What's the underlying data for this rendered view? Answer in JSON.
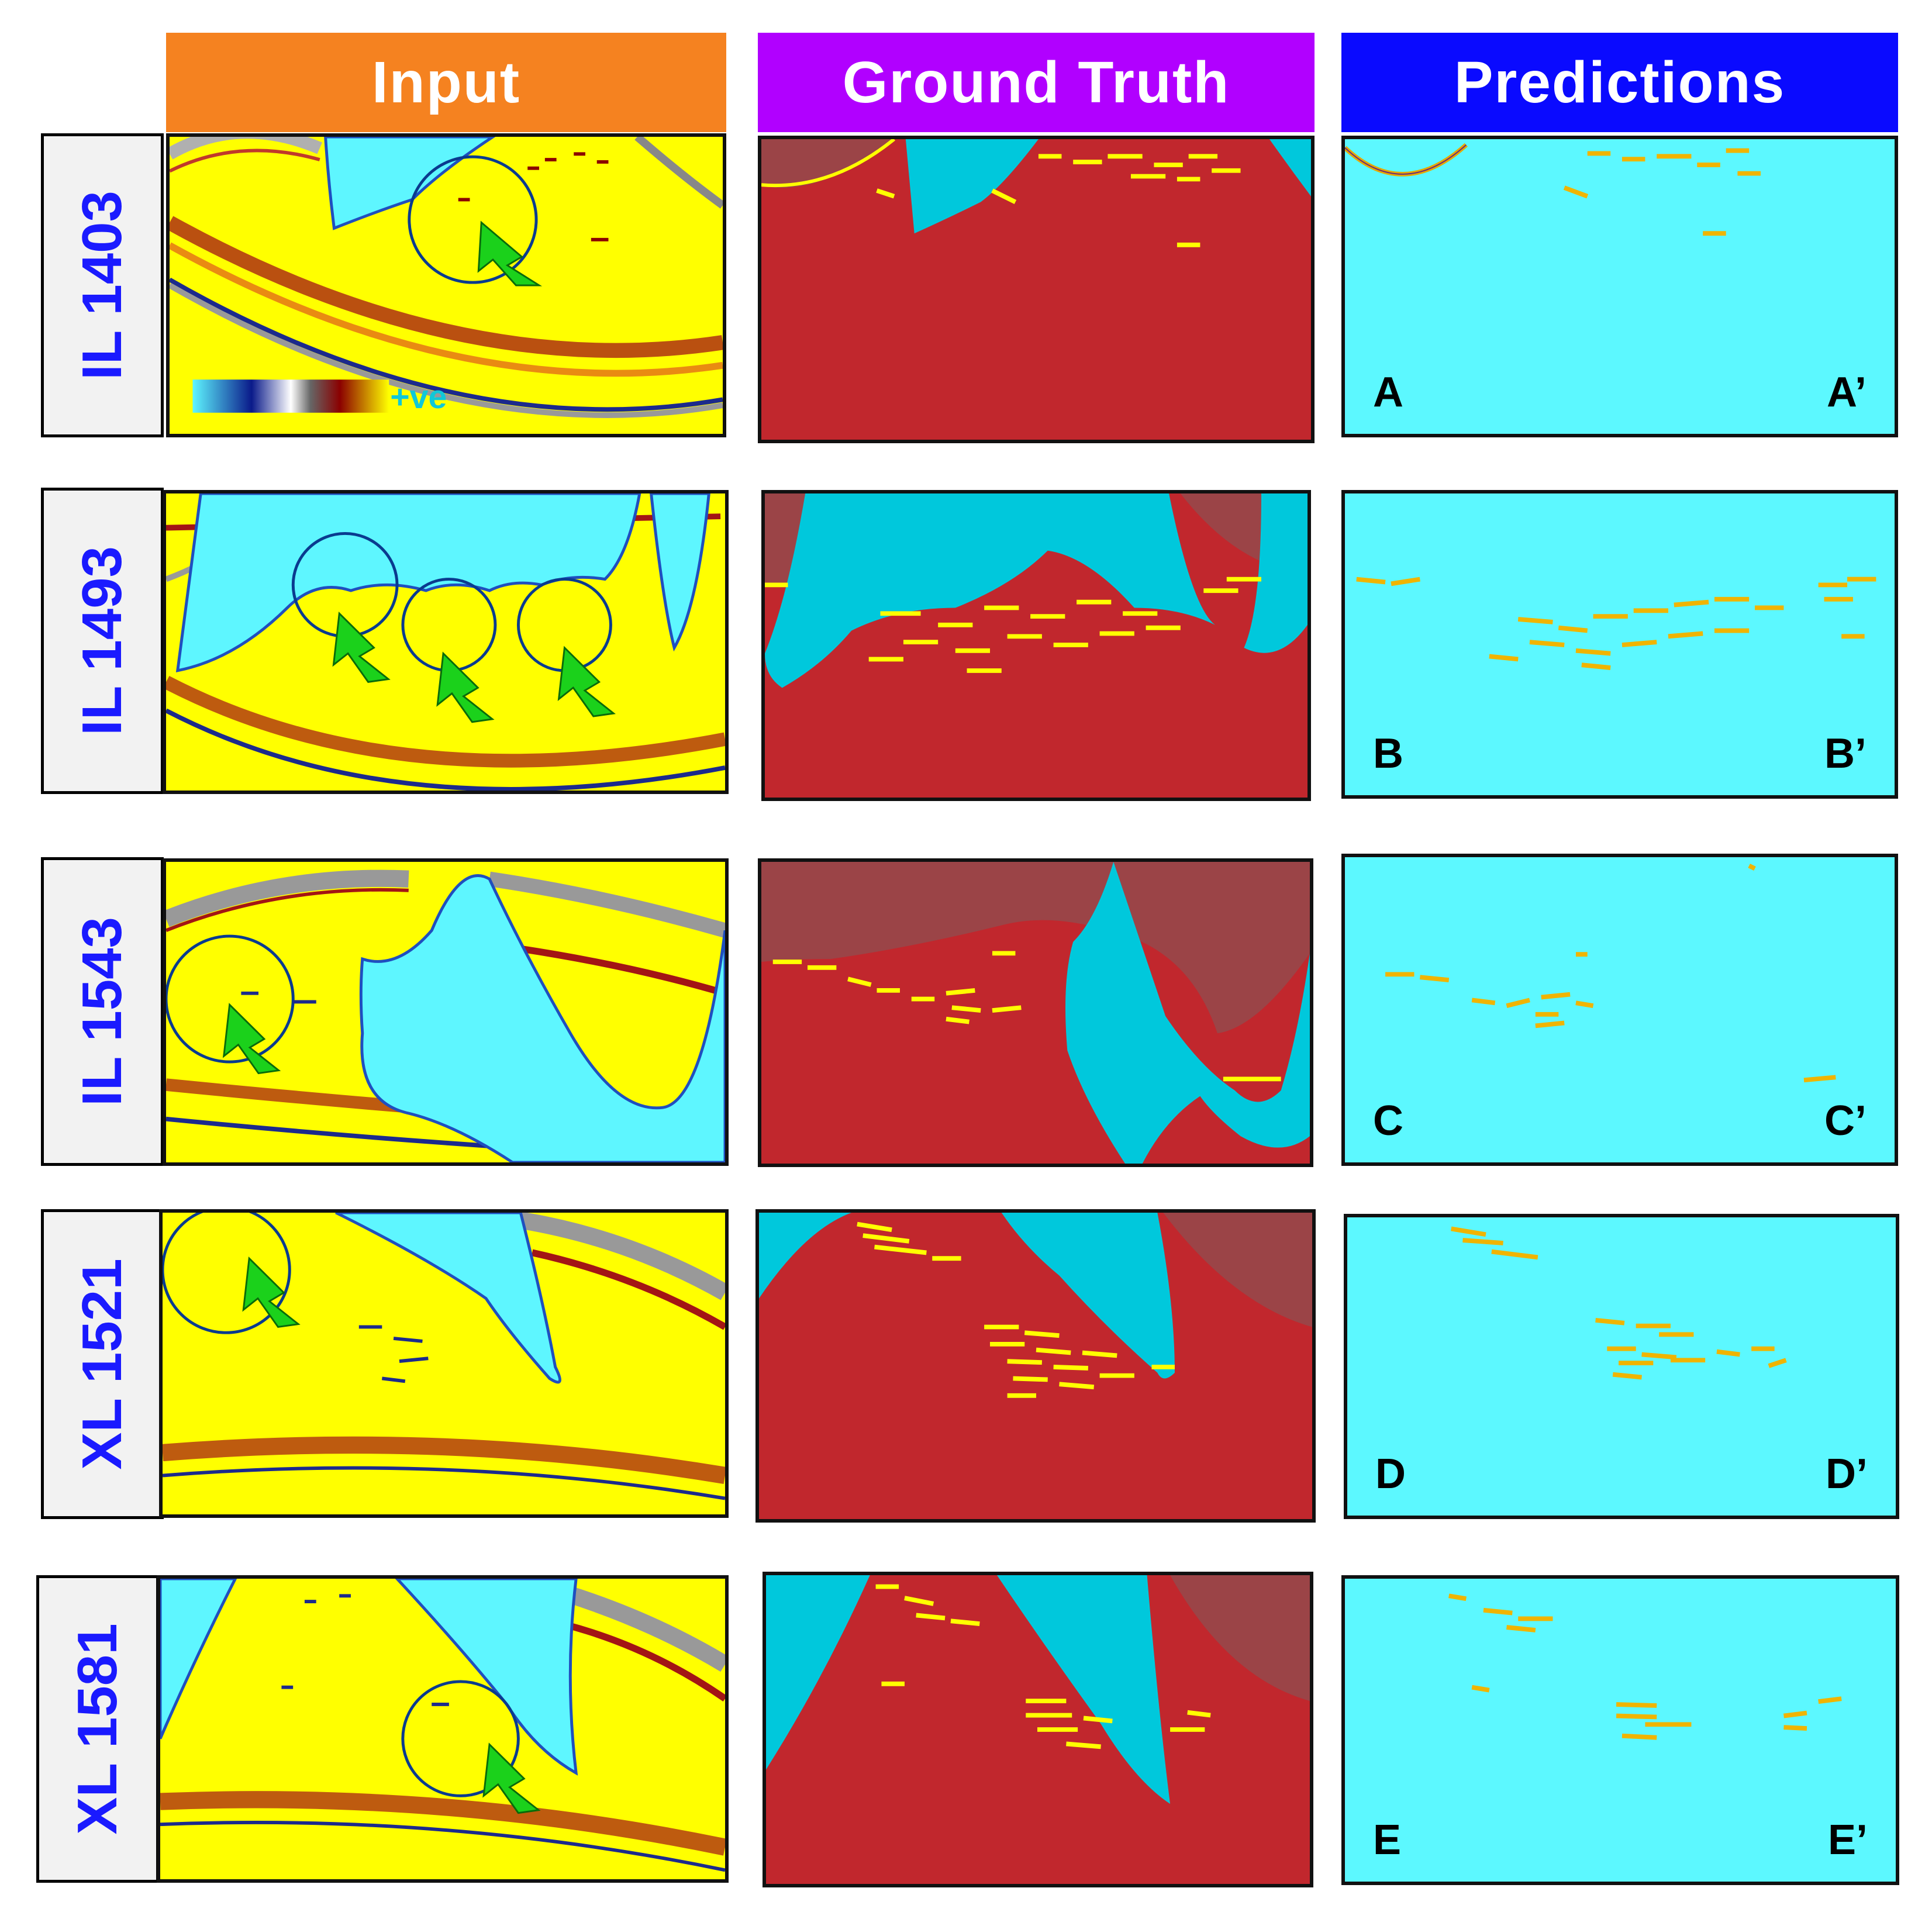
{
  "headers": {
    "input": "Input",
    "ground_truth": "Ground Truth",
    "predictions": "Predictions"
  },
  "colors": {
    "input_header": "#f58220",
    "ground_truth_header": "#b100ff",
    "predictions_header": "#0a0aff",
    "salt_blue": "#5ef6ff",
    "seismic_yellow": "#ffff00",
    "truth_red": "#c1272d",
    "truth_dark": "#9b4447",
    "truth_cyan": "#00c8dc",
    "pred_background": "#5cf8ff",
    "label_text": "#1a1aff"
  },
  "colorbar": {
    "label": "+ve"
  },
  "rows": [
    {
      "label": "IL 1403",
      "left_mark": "A",
      "right_mark": "A’"
    },
    {
      "label": "IL 1493",
      "left_mark": "B",
      "right_mark": "B’"
    },
    {
      "label": "IL 1543",
      "left_mark": "C",
      "right_mark": "C’"
    },
    {
      "label": "XL 1521",
      "left_mark": "D",
      "right_mark": "D’"
    },
    {
      "label": "XL 1581",
      "left_mark": "E",
      "right_mark": "E’"
    }
  ]
}
